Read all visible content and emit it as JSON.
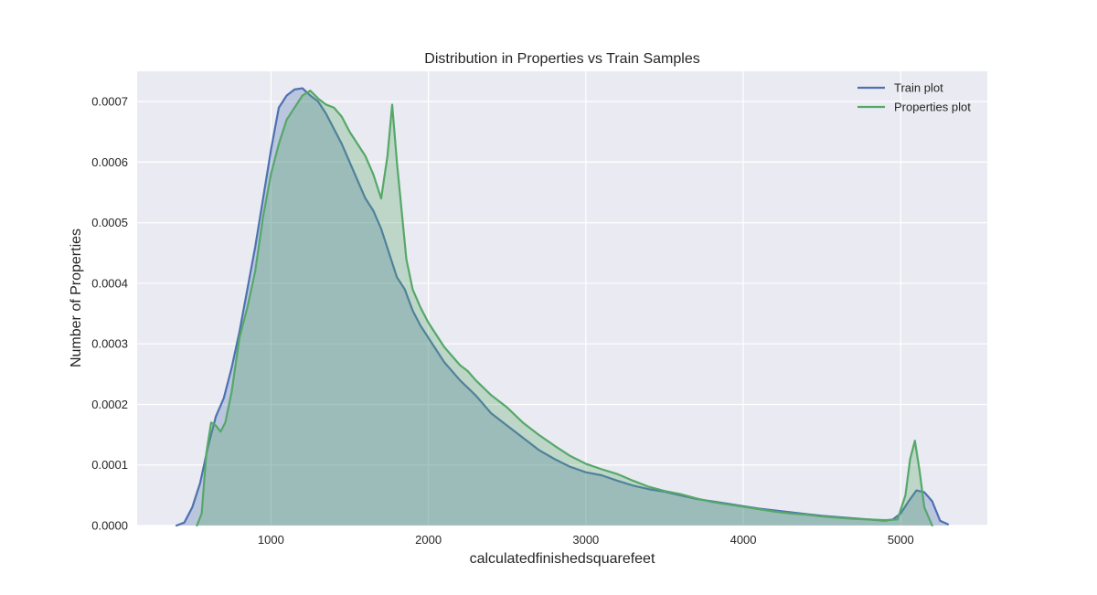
{
  "chart_data": {
    "type": "area",
    "title": "Distribution in Properties vs Train Samples",
    "xlabel": "calculatedfinishedsquarefeet",
    "ylabel": "Number of Properties",
    "xlim": [
      150,
      5550
    ],
    "ylim": [
      0,
      0.00075
    ],
    "x_ticks": [
      1000,
      2000,
      3000,
      4000,
      5000
    ],
    "x_tick_labels": [
      "1000",
      "2000",
      "3000",
      "4000",
      "5000"
    ],
    "y_ticks": [
      0,
      0.0001,
      0.0002,
      0.0003,
      0.0004,
      0.0005,
      0.0006,
      0.0007
    ],
    "y_tick_labels": [
      "0.0000",
      "0.0001",
      "0.0002",
      "0.0003",
      "0.0004",
      "0.0005",
      "0.0006",
      "0.0007"
    ],
    "grid": true,
    "legend_position": "top-right",
    "background_color": "#eaeaf2",
    "series": [
      {
        "name": "Train plot",
        "color": "#4c72b0",
        "fill": true,
        "x": [
          400,
          450,
          500,
          550,
          600,
          650,
          700,
          750,
          800,
          850,
          900,
          950,
          1000,
          1050,
          1100,
          1150,
          1200,
          1250,
          1300,
          1350,
          1400,
          1450,
          1500,
          1550,
          1600,
          1650,
          1700,
          1750,
          1800,
          1850,
          1900,
          1950,
          2000,
          2100,
          2200,
          2300,
          2400,
          2500,
          2600,
          2700,
          2800,
          2900,
          3000,
          3100,
          3200,
          3300,
          3400,
          3500,
          3600,
          3700,
          3800,
          3900,
          4000,
          4100,
          4200,
          4300,
          4400,
          4500,
          4600,
          4700,
          4800,
          4900,
          4950,
          5000,
          5050,
          5100,
          5150,
          5200,
          5250,
          5300
        ],
        "y": [
          0.0,
          5e-06,
          3e-05,
          7e-05,
          0.00013,
          0.00018,
          0.00021,
          0.00026,
          0.00032,
          0.00039,
          0.00046,
          0.00054,
          0.00062,
          0.00069,
          0.00071,
          0.00072,
          0.000722,
          0.00071,
          0.0007,
          0.00068,
          0.000655,
          0.00063,
          0.0006,
          0.00057,
          0.00054,
          0.00052,
          0.00049,
          0.00045,
          0.00041,
          0.00039,
          0.000355,
          0.00033,
          0.00031,
          0.00027,
          0.00024,
          0.000215,
          0.000185,
          0.000165,
          0.000145,
          0.000125,
          0.00011,
          9.7e-05,
          8.8e-05,
          8.3e-05,
          7.4e-05,
          6.6e-05,
          6e-05,
          5.6e-05,
          5e-05,
          4.4e-05,
          4e-05,
          3.6e-05,
          3.2e-05,
          2.8e-05,
          2.5e-05,
          2.2e-05,
          1.9e-05,
          1.6e-05,
          1.4e-05,
          1.2e-05,
          1e-05,
          8e-06,
          1e-05,
          2e-05,
          4e-05,
          5.8e-05,
          5.5e-05,
          4e-05,
          8e-06,
          2e-06
        ]
      },
      {
        "name": "Properties plot",
        "color": "#55a868",
        "fill": true,
        "x": [
          530,
          560,
          590,
          620,
          650,
          680,
          710,
          750,
          800,
          850,
          900,
          950,
          1000,
          1050,
          1100,
          1150,
          1200,
          1250,
          1300,
          1350,
          1400,
          1450,
          1500,
          1550,
          1600,
          1650,
          1700,
          1740,
          1770,
          1800,
          1830,
          1860,
          1900,
          1950,
          2000,
          2100,
          2200,
          2250,
          2300,
          2400,
          2500,
          2600,
          2700,
          2800,
          2900,
          3000,
          3100,
          3200,
          3300,
          3400,
          3500,
          3600,
          3700,
          3800,
          3900,
          4000,
          4100,
          4200,
          4300,
          4400,
          4500,
          4600,
          4700,
          4800,
          4900,
          4980,
          5030,
          5060,
          5090,
          5120,
          5150,
          5200
        ],
        "y": [
          0.0,
          2e-05,
          0.00012,
          0.00017,
          0.000165,
          0.000155,
          0.00017,
          0.00022,
          0.00031,
          0.00036,
          0.00042,
          0.00051,
          0.00058,
          0.00063,
          0.00067,
          0.00069,
          0.00071,
          0.000718,
          0.000705,
          0.000695,
          0.00069,
          0.000675,
          0.00065,
          0.00063,
          0.00061,
          0.00058,
          0.00054,
          0.00061,
          0.000695,
          0.0006,
          0.00052,
          0.00044,
          0.00039,
          0.00036,
          0.000335,
          0.000295,
          0.000265,
          0.000255,
          0.00024,
          0.000215,
          0.000195,
          0.00017,
          0.00015,
          0.000132,
          0.000115,
          0.000102,
          9.3e-05,
          8.5e-05,
          7.4e-05,
          6.4e-05,
          5.7e-05,
          5.2e-05,
          4.5e-05,
          3.9e-05,
          3.5e-05,
          3.1e-05,
          2.7e-05,
          2.3e-05,
          2e-05,
          1.8e-05,
          1.5e-05,
          1.3e-05,
          1.1e-05,
          1e-05,
          9e-06,
          1e-05,
          5e-05,
          0.00011,
          0.00014,
          9e-05,
          3e-05,
          0.0
        ]
      }
    ]
  }
}
